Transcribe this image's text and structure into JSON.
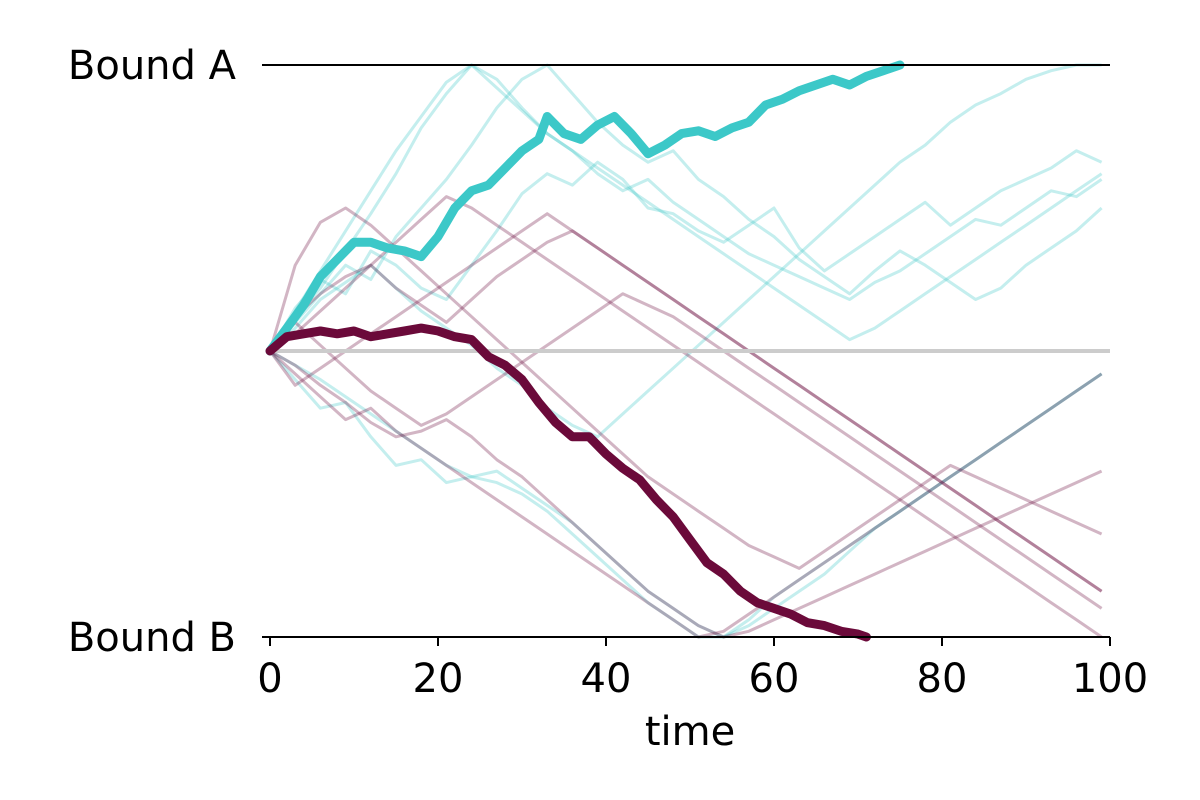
{
  "chart_data": {
    "type": "line",
    "title": "",
    "xlabel": "time",
    "ylabel": "",
    "xlim": [
      0,
      100
    ],
    "ylim": [
      -1,
      1
    ],
    "x_ticks": [
      0,
      20,
      40,
      60,
      80,
      100
    ],
    "y_tick_labels": [
      {
        "value": 1,
        "label": "Bound A"
      },
      {
        "value": -1,
        "label": "Bound B"
      }
    ],
    "grid": false,
    "colors": {
      "series_a": "#3cc8c8",
      "series_b": "#6b0a3a",
      "midline": "#cccccc",
      "bound_line": "#000000"
    },
    "highlight_series": [
      {
        "color_key": "series_a",
        "x": [
          0,
          2,
          4,
          6,
          8,
          10,
          12,
          14,
          16,
          18,
          20,
          22,
          24,
          26,
          28,
          30,
          32,
          33,
          35,
          37,
          39,
          41,
          43,
          45,
          47,
          49,
          51,
          53,
          55,
          57,
          59,
          61,
          63,
          65,
          67,
          69,
          71,
          73,
          75
        ],
        "y": [
          0.0,
          0.08,
          0.16,
          0.26,
          0.32,
          0.38,
          0.38,
          0.36,
          0.35,
          0.33,
          0.4,
          0.5,
          0.56,
          0.58,
          0.64,
          0.7,
          0.74,
          0.82,
          0.76,
          0.74,
          0.79,
          0.82,
          0.76,
          0.69,
          0.72,
          0.76,
          0.77,
          0.75,
          0.78,
          0.8,
          0.86,
          0.88,
          0.91,
          0.93,
          0.95,
          0.93,
          0.96,
          0.98,
          1.0
        ]
      },
      {
        "color_key": "series_b",
        "x": [
          0,
          2,
          4,
          6,
          8,
          10,
          12,
          14,
          16,
          18,
          20,
          22,
          24,
          26,
          28,
          30,
          32,
          34,
          36,
          38,
          40,
          42,
          44,
          46,
          48,
          50,
          52,
          54,
          56,
          58,
          60,
          62,
          64,
          66,
          68,
          70,
          71
        ],
        "y": [
          0.0,
          0.05,
          0.06,
          0.07,
          0.06,
          0.07,
          0.05,
          0.06,
          0.07,
          0.08,
          0.07,
          0.05,
          0.04,
          -0.02,
          -0.05,
          -0.1,
          -0.18,
          -0.25,
          -0.3,
          -0.3,
          -0.36,
          -0.41,
          -0.45,
          -0.52,
          -0.58,
          -0.66,
          -0.74,
          -0.78,
          -0.84,
          -0.88,
          -0.9,
          -0.92,
          -0.95,
          -0.96,
          -0.98,
          -0.99,
          -1.0
        ]
      }
    ],
    "background_series": [
      {
        "color_key": "series_a",
        "x": [
          0,
          3,
          6,
          9,
          12,
          15,
          18,
          21,
          24,
          27,
          30,
          33,
          36,
          39,
          42,
          45,
          48,
          51,
          54,
          57,
          60,
          63,
          66,
          69,
          72,
          75,
          78,
          81,
          84,
          87,
          90,
          93,
          96,
          99
        ],
        "y": [
          0.0,
          0.15,
          0.25,
          0.2,
          0.35,
          0.3,
          0.22,
          0.18,
          0.3,
          0.42,
          0.55,
          0.62,
          0.58,
          0.66,
          0.6,
          0.5,
          0.48,
          0.42,
          0.38,
          0.44,
          0.5,
          0.36,
          0.28,
          0.34,
          0.4,
          0.46,
          0.52,
          0.44,
          0.5,
          0.56,
          0.6,
          0.64,
          0.7,
          0.66
        ]
      },
      {
        "color_key": "series_a",
        "x": [
          0,
          3,
          6,
          9,
          12,
          15,
          18,
          21,
          24,
          27,
          30,
          33,
          36,
          39,
          42,
          45,
          48,
          51,
          54,
          57,
          60,
          63,
          66,
          69,
          72,
          75,
          78,
          81,
          84,
          87,
          90,
          93,
          96,
          99
        ],
        "y": [
          0.0,
          0.1,
          0.2,
          0.3,
          0.25,
          0.4,
          0.5,
          0.6,
          0.72,
          0.85,
          0.95,
          1.0,
          0.9,
          0.8,
          0.72,
          0.66,
          0.7,
          0.6,
          0.54,
          0.46,
          0.4,
          0.32,
          0.26,
          0.2,
          0.28,
          0.35,
          0.3,
          0.24,
          0.18,
          0.22,
          0.3,
          0.36,
          0.42,
          0.5
        ]
      },
      {
        "color_key": "series_a",
        "x": [
          0,
          3,
          6,
          9,
          12,
          15,
          18,
          21,
          24,
          27,
          30,
          33,
          36,
          39,
          42,
          45,
          48,
          51,
          54,
          57,
          60,
          63,
          66,
          69,
          72,
          75,
          78,
          81,
          84,
          87,
          90,
          93,
          96,
          99
        ],
        "y": [
          0.0,
          0.12,
          0.22,
          0.35,
          0.48,
          0.62,
          0.78,
          0.9,
          1.0,
          0.95,
          0.85,
          0.76,
          0.7,
          0.62,
          0.56,
          0.6,
          0.52,
          0.46,
          0.4,
          0.34,
          0.3,
          0.26,
          0.22,
          0.18,
          0.24,
          0.28,
          0.34,
          0.4,
          0.46,
          0.44,
          0.5,
          0.56,
          0.54,
          0.6
        ]
      },
      {
        "color_key": "series_a",
        "x": [
          0,
          3,
          6,
          9,
          12,
          15,
          18,
          21,
          24,
          27,
          30,
          33,
          36,
          39,
          42,
          45,
          48,
          51,
          54,
          57,
          60,
          63,
          66,
          69,
          72,
          75,
          78,
          81,
          84,
          87,
          90,
          93,
          96,
          99
        ],
        "y": [
          0.0,
          0.08,
          0.18,
          0.24,
          0.3,
          0.22,
          0.14,
          0.08,
          0.02,
          -0.06,
          -0.12,
          -0.2,
          -0.26,
          -0.3,
          -0.22,
          -0.14,
          -0.06,
          0.02,
          0.1,
          0.18,
          0.26,
          0.34,
          0.42,
          0.5,
          0.58,
          0.66,
          0.72,
          0.8,
          0.86,
          0.9,
          0.95,
          0.98,
          1.0,
          1.0
        ]
      },
      {
        "color_key": "series_a",
        "x": [
          0,
          3,
          6,
          9,
          12,
          15,
          18,
          21,
          24,
          27,
          30,
          33,
          36,
          39,
          42,
          45,
          48,
          51,
          54,
          57,
          60,
          63,
          66,
          69,
          72,
          75,
          78,
          81,
          84,
          87,
          90,
          93,
          96,
          99
        ],
        "y": [
          0.0,
          -0.05,
          -0.1,
          -0.16,
          -0.22,
          -0.28,
          -0.34,
          -0.4,
          -0.44,
          -0.46,
          -0.5,
          -0.56,
          -0.64,
          -0.72,
          -0.8,
          -0.88,
          -0.94,
          -1.0,
          -1.0,
          -0.96,
          -0.9,
          -0.84,
          -0.78,
          -0.7,
          -0.62,
          -0.56,
          -0.5,
          -0.44,
          -0.38,
          -0.32,
          -0.26,
          -0.2,
          -0.14,
          -0.08
        ]
      },
      {
        "color_key": "series_a",
        "x": [
          0,
          3,
          6,
          9,
          12,
          15,
          18,
          21,
          24,
          27,
          30,
          33,
          36,
          39,
          42,
          45,
          48,
          51,
          54,
          57,
          60,
          63,
          66,
          69,
          72,
          75,
          78,
          81,
          84,
          87,
          90,
          93,
          96,
          99
        ],
        "y": [
          0.0,
          0.14,
          0.28,
          0.42,
          0.56,
          0.7,
          0.82,
          0.94,
          1.0,
          0.92,
          0.84,
          0.76,
          0.7,
          0.64,
          0.58,
          0.52,
          0.46,
          0.4,
          0.34,
          0.28,
          0.22,
          0.16,
          0.1,
          0.04,
          0.08,
          0.14,
          0.2,
          0.26,
          0.32,
          0.38,
          0.44,
          0.5,
          0.56,
          0.62
        ]
      },
      {
        "color_key": "series_a",
        "x": [
          0,
          3,
          6,
          9,
          12,
          15,
          18,
          21,
          24,
          27,
          30,
          33,
          36,
          39,
          42,
          45,
          48,
          51,
          54,
          57,
          60,
          63,
          66,
          69,
          72,
          75,
          78,
          81,
          84,
          87,
          90,
          93,
          96,
          99
        ],
        "y": [
          0.0,
          -0.1,
          -0.2,
          -0.18,
          -0.3,
          -0.4,
          -0.38,
          -0.46,
          -0.44,
          -0.42,
          -0.48,
          -0.54,
          -0.6,
          -0.68,
          -0.76,
          -0.84,
          -0.9,
          -0.96,
          -1.0,
          -0.94,
          -0.86,
          -0.8,
          -0.74,
          -0.68,
          -0.62,
          -0.56,
          -0.5,
          -0.44,
          -0.38,
          -0.32,
          -0.26,
          -0.2,
          -0.14,
          -0.08
        ]
      },
      {
        "color_key": "series_b",
        "x": [
          0,
          3,
          6,
          9,
          12,
          15,
          18,
          21,
          24,
          27,
          30,
          33,
          36,
          39,
          42,
          45,
          48,
          51,
          54,
          57,
          60,
          63,
          66,
          69,
          72,
          75,
          78,
          81,
          84,
          87,
          90,
          93,
          96,
          99
        ],
        "y": [
          0.0,
          0.3,
          0.45,
          0.5,
          0.44,
          0.36,
          0.28,
          0.2,
          0.12,
          0.04,
          -0.04,
          -0.12,
          -0.2,
          -0.28,
          -0.36,
          -0.44,
          -0.5,
          -0.56,
          -0.62,
          -0.68,
          -0.72,
          -0.76,
          -0.7,
          -0.64,
          -0.58,
          -0.52,
          -0.46,
          -0.4,
          -0.44,
          -0.48,
          -0.52,
          -0.56,
          -0.6,
          -0.64
        ]
      },
      {
        "color_key": "series_b",
        "x": [
          0,
          3,
          6,
          9,
          12,
          15,
          18,
          21,
          24,
          27,
          30,
          33,
          36,
          39,
          42,
          45,
          48,
          51,
          54,
          57,
          60,
          63,
          66,
          69,
          72,
          75,
          78,
          81,
          84,
          87,
          90,
          93,
          96,
          99
        ],
        "y": [
          0.0,
          -0.05,
          -0.12,
          -0.18,
          -0.25,
          -0.3,
          -0.28,
          -0.24,
          -0.3,
          -0.38,
          -0.44,
          -0.52,
          -0.6,
          -0.68,
          -0.76,
          -0.84,
          -0.9,
          -0.96,
          -1.0,
          -0.98,
          -0.94,
          -0.9,
          -0.86,
          -0.82,
          -0.78,
          -0.74,
          -0.7,
          -0.66,
          -0.62,
          -0.58,
          -0.54,
          -0.5,
          -0.46,
          -0.42
        ]
      },
      {
        "color_key": "series_b",
        "x": [
          0,
          3,
          6,
          9,
          12,
          15,
          18,
          21,
          24,
          27,
          30,
          33,
          36,
          39,
          42,
          45,
          48,
          51,
          54,
          57,
          60,
          63,
          66,
          69,
          72,
          75,
          78,
          81,
          84,
          87,
          90,
          93,
          96,
          99
        ],
        "y": [
          0.0,
          0.12,
          0.2,
          0.26,
          0.3,
          0.22,
          0.16,
          0.1,
          0.18,
          0.26,
          0.32,
          0.38,
          0.42,
          0.36,
          0.3,
          0.24,
          0.18,
          0.12,
          0.06,
          0.0,
          -0.06,
          -0.12,
          -0.18,
          -0.24,
          -0.3,
          -0.36,
          -0.42,
          -0.48,
          -0.54,
          -0.6,
          -0.66,
          -0.72,
          -0.78,
          -0.84
        ]
      },
      {
        "color_key": "series_b",
        "x": [
          0,
          3,
          6,
          9,
          12,
          15,
          18,
          21,
          24,
          27,
          30,
          33,
          36,
          39,
          42,
          45,
          48,
          51,
          54,
          57,
          60,
          63,
          66,
          69,
          72,
          75,
          78,
          81,
          84,
          87,
          90,
          93,
          96,
          99
        ],
        "y": [
          0.0,
          0.1,
          0.02,
          -0.06,
          -0.14,
          -0.2,
          -0.26,
          -0.22,
          -0.16,
          -0.1,
          -0.04,
          0.02,
          0.08,
          0.14,
          0.2,
          0.16,
          0.12,
          0.06,
          0.0,
          -0.06,
          -0.12,
          -0.18,
          -0.24,
          -0.3,
          -0.36,
          -0.42,
          -0.48,
          -0.54,
          -0.6,
          -0.66,
          -0.72,
          -0.78,
          -0.84,
          -0.9
        ]
      },
      {
        "color_key": "series_b",
        "x": [
          0,
          3,
          6,
          9,
          12,
          15,
          18,
          21,
          24,
          27,
          30,
          33,
          36,
          39,
          42,
          45,
          48,
          51,
          54,
          57,
          60,
          63,
          66,
          69,
          72,
          75,
          78,
          81,
          84,
          87,
          90,
          93,
          96,
          99
        ],
        "y": [
          0.0,
          -0.08,
          -0.16,
          -0.24,
          -0.2,
          -0.28,
          -0.34,
          -0.4,
          -0.46,
          -0.52,
          -0.58,
          -0.64,
          -0.7,
          -0.76,
          -0.82,
          -0.88,
          -0.94,
          -1.0,
          -0.98,
          -0.92,
          -0.86,
          -0.8,
          -0.74,
          -0.68,
          -0.62,
          -0.56,
          -0.5,
          -0.44,
          -0.38,
          -0.32,
          -0.26,
          -0.2,
          -0.14,
          -0.08
        ]
      },
      {
        "color_key": "series_b",
        "x": [
          0,
          3,
          6,
          9,
          12,
          15,
          18,
          21,
          24,
          27,
          30,
          33,
          36,
          39,
          42,
          45,
          48,
          51,
          54,
          57,
          60,
          63,
          66,
          69,
          72,
          75,
          78,
          81,
          84,
          87,
          90,
          93,
          96,
          99
        ],
        "y": [
          0.0,
          0.06,
          0.14,
          0.22,
          0.3,
          0.38,
          0.46,
          0.54,
          0.5,
          0.44,
          0.38,
          0.32,
          0.26,
          0.2,
          0.14,
          0.08,
          0.02,
          -0.04,
          -0.1,
          -0.16,
          -0.22,
          -0.28,
          -0.34,
          -0.4,
          -0.46,
          -0.52,
          -0.58,
          -0.64,
          -0.7,
          -0.76,
          -0.82,
          -0.88,
          -0.94,
          -1.0
        ]
      },
      {
        "color_key": "series_b",
        "x": [
          0,
          3,
          6,
          9,
          12,
          15,
          18,
          21,
          24,
          27,
          30,
          33,
          36,
          39,
          42,
          45,
          48,
          51,
          54,
          57,
          60,
          63,
          66,
          69,
          72,
          75,
          78,
          81,
          84,
          87,
          90,
          93,
          96,
          99
        ],
        "y": [
          0.0,
          -0.12,
          -0.06,
          0.0,
          0.06,
          0.12,
          0.18,
          0.24,
          0.3,
          0.36,
          0.42,
          0.48,
          0.42,
          0.36,
          0.3,
          0.24,
          0.18,
          0.12,
          0.06,
          0.0,
          -0.06,
          -0.12,
          -0.18,
          -0.24,
          -0.3,
          -0.36,
          -0.42,
          -0.48,
          -0.54,
          -0.6,
          -0.66,
          -0.72,
          -0.78,
          -0.84
        ]
      }
    ]
  }
}
